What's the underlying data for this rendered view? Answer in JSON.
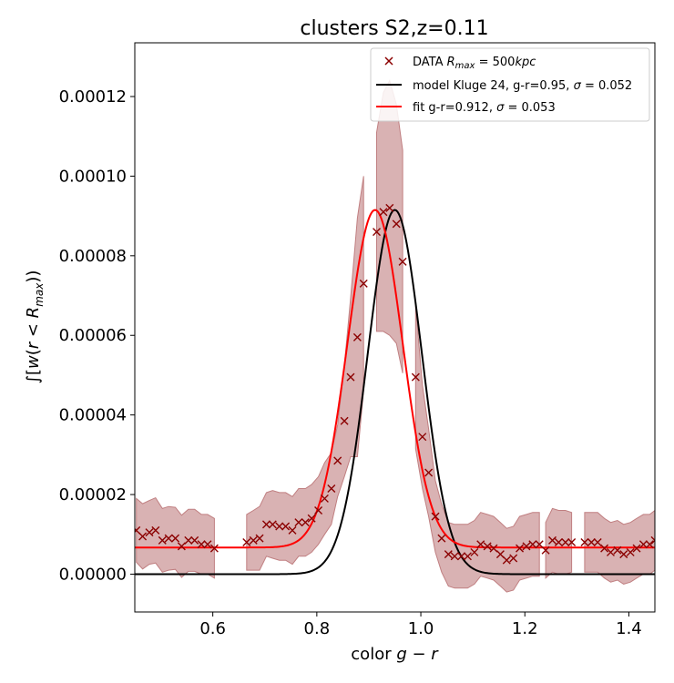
{
  "chart_data": {
    "type": "line",
    "title": "clusters S2,z=0.11",
    "xlabel": "color g − r",
    "ylabel": "∫[w(r < R_max))",
    "xlim": [
      0.45,
      1.45
    ],
    "ylim": [
      -9.5e-06,
      0.0001335
    ],
    "grid": false,
    "legend_position": "top-right",
    "x_ticks": [
      0.6,
      0.8,
      1.0,
      1.2,
      1.4
    ],
    "x_tick_labels": [
      "0.6",
      "0.8",
      "1.0",
      "1.2",
      "1.4"
    ],
    "y_ticks": [
      0.0,
      2e-05,
      4e-05,
      6e-05,
      8e-05,
      0.0001,
      0.00012
    ],
    "y_tick_labels": [
      "0.00000",
      "0.00002",
      "0.00004",
      "0.00006",
      "0.00008",
      "0.00010",
      "0.00012"
    ],
    "series": [
      {
        "name": "DATA R_max = 500kpc",
        "kind": "scatter",
        "marker": "x",
        "color": "#8b0000",
        "band_color": "#c07f81",
        "segments": [
          {
            "points": [
              [
                0.453,
                1.1e-05,
                8e-06
              ],
              [
                0.465,
                9.5e-06,
                8.2e-06
              ],
              [
                0.478,
                1.05e-05,
                8e-06
              ],
              [
                0.49,
                1.1e-05,
                8.2e-06
              ],
              [
                0.503,
                8.5e-06,
                8e-06
              ],
              [
                0.515,
                9e-06,
                8e-06
              ],
              [
                0.528,
                9e-06,
                7.8e-06
              ],
              [
                0.54,
                7e-06,
                7.8e-06
              ],
              [
                0.553,
                8.5e-06,
                7.8e-06
              ],
              [
                0.565,
                8.5e-06,
                7.8e-06
              ],
              [
                0.578,
                7.5e-06,
                7.5e-06
              ],
              [
                0.59,
                7.5e-06,
                7.5e-06
              ],
              [
                0.603,
                6.5e-06,
                7.5e-06
              ]
            ]
          },
          {
            "points": [
              [
                0.665,
                8e-06,
                7e-06
              ],
              [
                0.678,
                8.5e-06,
                7.5e-06
              ],
              [
                0.69,
                9e-06,
                8e-06
              ],
              [
                0.703,
                1.25e-05,
                8e-06
              ],
              [
                0.715,
                1.25e-05,
                8.5e-06
              ],
              [
                0.728,
                1.2e-05,
                8.5e-06
              ],
              [
                0.74,
                1.2e-05,
                8.5e-06
              ],
              [
                0.753,
                1.1e-05,
                8.5e-06
              ],
              [
                0.765,
                1.3e-05,
                8.5e-06
              ],
              [
                0.778,
                1.3e-05,
                8.5e-06
              ],
              [
                0.79,
                1.4e-05,
                8.5e-06
              ],
              [
                0.803,
                1.6e-05,
                8.5e-06
              ],
              [
                0.815,
                1.9e-05,
                9e-06
              ],
              [
                0.828,
                2.15e-05,
                9e-06
              ],
              [
                0.84,
                2.85e-05,
                9e-06
              ],
              [
                0.853,
                3.85e-05,
                1.4e-05
              ],
              [
                0.865,
                4.95e-05,
                2e-05
              ],
              [
                0.878,
                5.95e-05,
                3e-05
              ],
              [
                0.89,
                7.3e-05,
                2.7e-05
              ]
            ]
          },
          {
            "points": [
              [
                0.915,
                8.6e-05,
                2.5e-05
              ],
              [
                0.928,
                9.1e-05,
                3e-05
              ],
              [
                0.94,
                9.2e-05,
                3.2e-05
              ],
              [
                0.953,
                8.8e-05,
                3e-05
              ],
              [
                0.965,
                7.85e-05,
                2.8e-05
              ]
            ]
          },
          {
            "points": [
              [
                0.99,
                4.95e-05,
                1.8e-05
              ],
              [
                1.003,
                3.45e-05,
                1.3e-05
              ],
              [
                1.015,
                2.55e-05,
                1.1e-05
              ],
              [
                1.028,
                1.45e-05,
                9e-06
              ],
              [
                1.04,
                9e-06,
                8.5e-06
              ],
              [
                1.053,
                5e-06,
                8e-06
              ],
              [
                1.065,
                4.5e-06,
                8e-06
              ],
              [
                1.078,
                4.5e-06,
                8e-06
              ],
              [
                1.09,
                4.5e-06,
                8e-06
              ],
              [
                1.103,
                5.5e-06,
                8e-06
              ],
              [
                1.115,
                7.5e-06,
                8e-06
              ],
              [
                1.128,
                7e-06,
                8e-06
              ],
              [
                1.14,
                6.5e-06,
                8e-06
              ],
              [
                1.153,
                5e-06,
                8e-06
              ],
              [
                1.165,
                3.5e-06,
                8e-06
              ],
              [
                1.178,
                4e-06,
                8e-06
              ],
              [
                1.19,
                6.5e-06,
                8e-06
              ],
              [
                1.203,
                7e-06,
                8e-06
              ],
              [
                1.215,
                7.5e-06,
                8e-06
              ],
              [
                1.228,
                7.5e-06,
                8e-06
              ]
            ]
          },
          {
            "points": [
              [
                1.24,
                6e-06,
                7e-06
              ],
              [
                1.253,
                8.5e-06,
                8e-06
              ],
              [
                1.265,
                8e-06,
                8e-06
              ],
              [
                1.278,
                8e-06,
                8e-06
              ],
              [
                1.29,
                8e-06,
                7.5e-06
              ]
            ]
          },
          {
            "points": [
              [
                1.315,
                8e-06,
                7.5e-06
              ],
              [
                1.328,
                8e-06,
                7.5e-06
              ],
              [
                1.34,
                8e-06,
                7.5e-06
              ],
              [
                1.353,
                6.5e-06,
                7.5e-06
              ],
              [
                1.365,
                5.5e-06,
                7.5e-06
              ],
              [
                1.378,
                6e-06,
                7.5e-06
              ],
              [
                1.39,
                5e-06,
                7.5e-06
              ],
              [
                1.403,
                5.5e-06,
                7.5e-06
              ],
              [
                1.415,
                6.5e-06,
                7.5e-06
              ],
              [
                1.428,
                7.5e-06,
                7.5e-06
              ],
              [
                1.44,
                7.5e-06,
                7.5e-06
              ],
              [
                1.45,
                8.5e-06,
                7.5e-06
              ]
            ]
          }
        ]
      },
      {
        "name": "model Kluge 24, g-r=0.95, σ = 0.052",
        "kind": "gaussian",
        "color": "#000000",
        "mu": 0.95,
        "sigma": 0.052,
        "amplitude": 9.15e-05,
        "baseline": 0.0
      },
      {
        "name": "fit g-r=0.912, σ = 0.053",
        "kind": "gaussian",
        "color": "#ff0000",
        "mu": 0.912,
        "sigma": 0.053,
        "amplitude": 8.48e-05,
        "baseline": 6.7e-06
      }
    ]
  }
}
